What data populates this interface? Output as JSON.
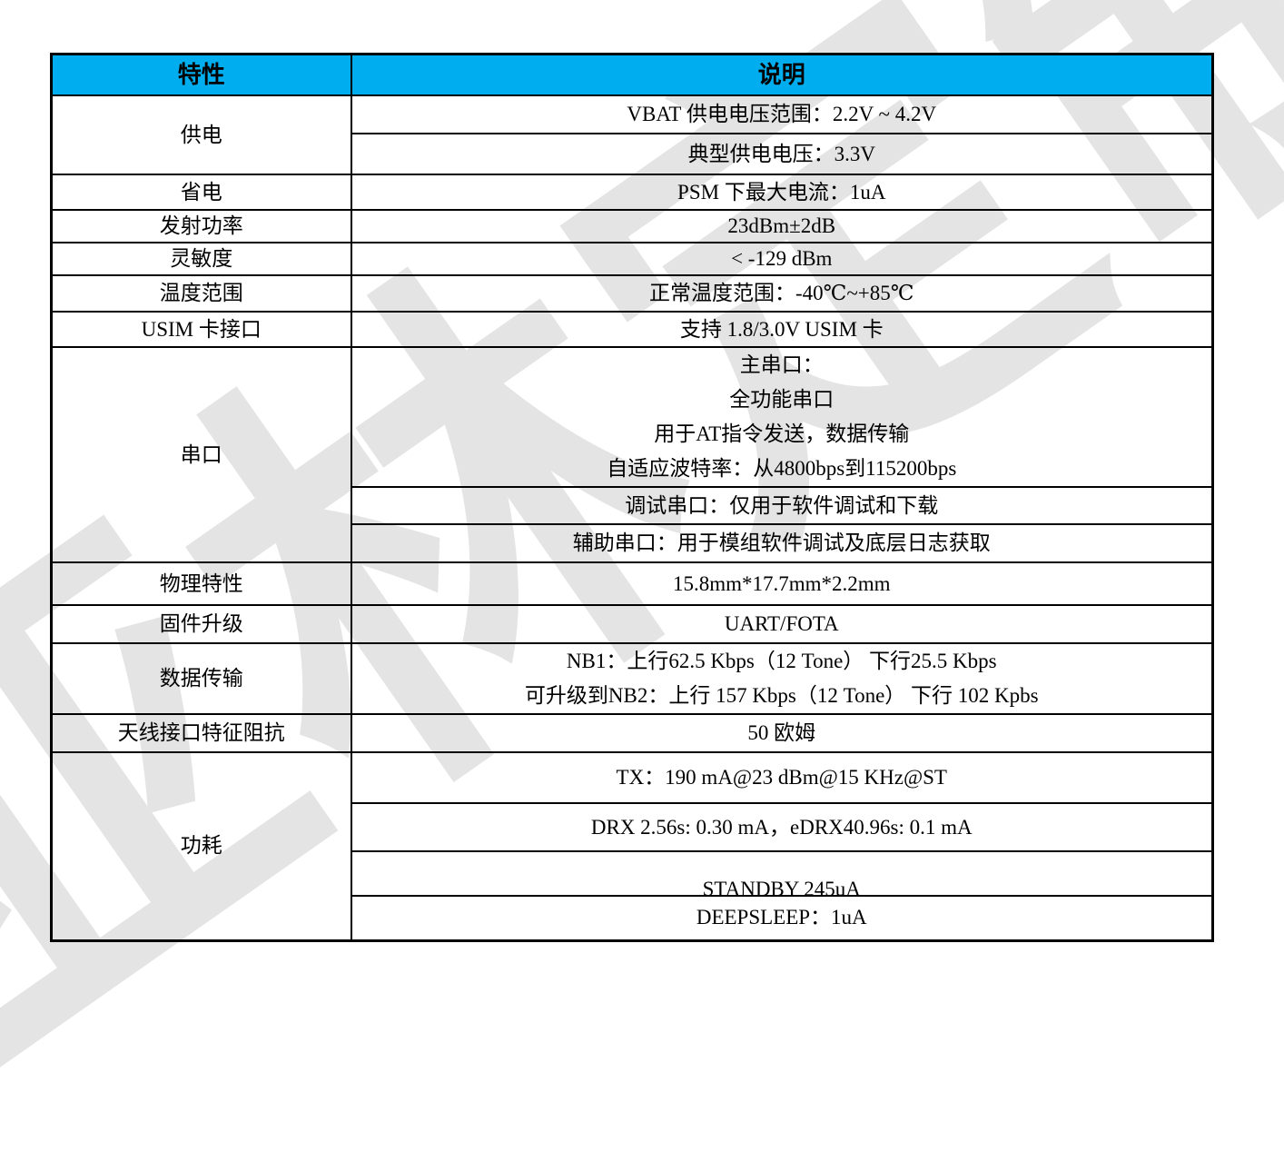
{
  "watermark": {
    "text": "亚林定制",
    "color": "#e4e4e4"
  },
  "table": {
    "header": {
      "feature": "特性",
      "description": "说明",
      "header_bg": "#00AEEF"
    },
    "power_supply": {
      "label": "供电",
      "vbat": "VBAT 供电电压范围：2.2V ~ 4.2V",
      "typical": "典型供电电压：3.3V"
    },
    "power_saving": {
      "label": "省电",
      "value": "PSM 下最大电流：1uA"
    },
    "tx_power": {
      "label": "发射功率",
      "value": "23dBm±2dB"
    },
    "sensitivity": {
      "label": "灵敏度",
      "value": "< -129 dBm"
    },
    "temperature": {
      "label": "温度范围",
      "value": "正常温度范围：-40℃~+85℃"
    },
    "usim": {
      "label": "USIM 卡接口",
      "value": "支持 1.8/3.0V USIM 卡"
    },
    "serial": {
      "label": "串口",
      "main_line1": "主串口：",
      "main_line2": "全功能串口",
      "main_line3": "用于AT指令发送，数据传输",
      "main_line4": "自适应波特率：从4800bps到115200bps",
      "debug": "调试串口：仅用于软件调试和下载",
      "aux": "辅助串口：用于模组软件调试及底层日志获取"
    },
    "physical": {
      "label": "物理特性",
      "value": "15.8mm*17.7mm*2.2mm"
    },
    "firmware": {
      "label": "固件升级",
      "value": "UART/FOTA"
    },
    "data_rate": {
      "label": "数据传输",
      "line1": "NB1：上行62.5 Kbps（12 Tone）  下行25.5 Kbps",
      "line2": "可升级到NB2：上行 157 Kbps（12 Tone）   下行 102 Kpbs"
    },
    "antenna": {
      "label": "天线接口特征阻抗",
      "value": "50 欧姆"
    },
    "consumption": {
      "label": "功耗",
      "tx": "TX：190 mA@23 dBm@15 KHz@ST",
      "drx": "DRX 2.56s: 0.30 mA，eDRX40.96s: 0.1 mA",
      "standby": "STANDBY 245uA",
      "deepsleep": "DEEPSLEEP：1uA"
    }
  }
}
